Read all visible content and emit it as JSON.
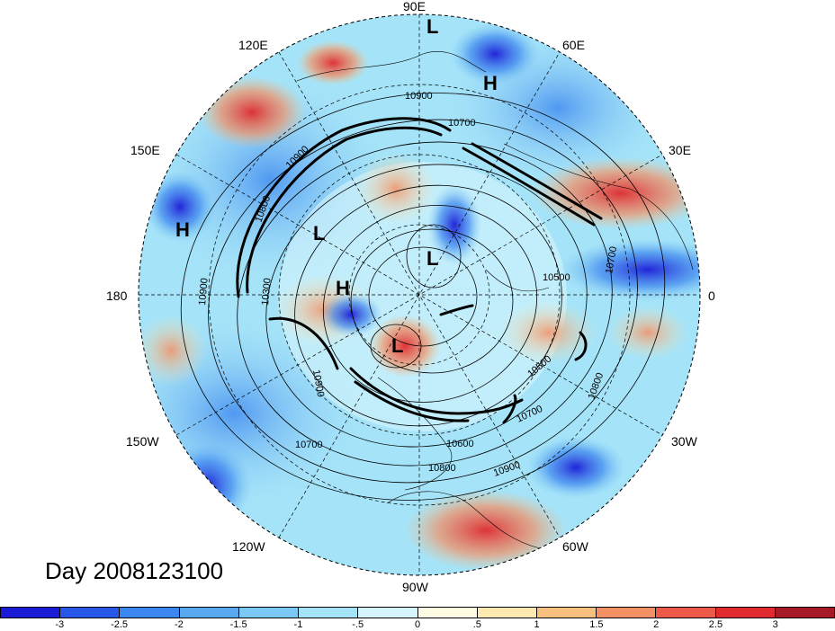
{
  "title": "Day 2008123100",
  "longitude_labels": {
    "top": "90E",
    "upper_left": "120E",
    "upper_right": "60E",
    "left_upper": "150E",
    "right_upper": "30E",
    "left": "180",
    "right": "0",
    "left_lower": "150W",
    "right_lower": "30W",
    "lower_left": "120W",
    "lower_right": "60W",
    "bottom": "90W"
  },
  "pressure_centers": [
    {
      "label": "L",
      "lon": 90,
      "lat": 22
    },
    {
      "label": "H",
      "lon": 70,
      "lat": 30
    },
    {
      "label": "H",
      "lon": 170,
      "lat": 12
    },
    {
      "label": "L",
      "lon": 140,
      "lat": 68
    },
    {
      "label": "L",
      "lon": 70,
      "lat": 85
    },
    {
      "label": "H",
      "lon": 190,
      "lat": 80
    },
    {
      "label": "L",
      "lon": 250,
      "lat": 82
    }
  ],
  "contour_labels": [
    "10900",
    "10700",
    "10900",
    "10800",
    "10900",
    "10300",
    "10500",
    "10700",
    "10500",
    "10800",
    "10700",
    "10600",
    "10800",
    "10900",
    "10700",
    "10900"
  ],
  "colorbar": {
    "colors": [
      "#1b1bd6",
      "#2858e8",
      "#3b86ef",
      "#5aa9f0",
      "#7bc8f5",
      "#a5e3f8",
      "#d6f4fb",
      "#fffbe2",
      "#fde9b0",
      "#f8c07f",
      "#f39064",
      "#ee5a4a",
      "#e02a2e",
      "#a51a26"
    ],
    "tick_labels": [
      "-3",
      "-2.5",
      "-2",
      "-1.5",
      "-1",
      "-.5",
      "0",
      ".5",
      "1",
      "1.5",
      "2",
      "2.5",
      "3"
    ]
  }
}
